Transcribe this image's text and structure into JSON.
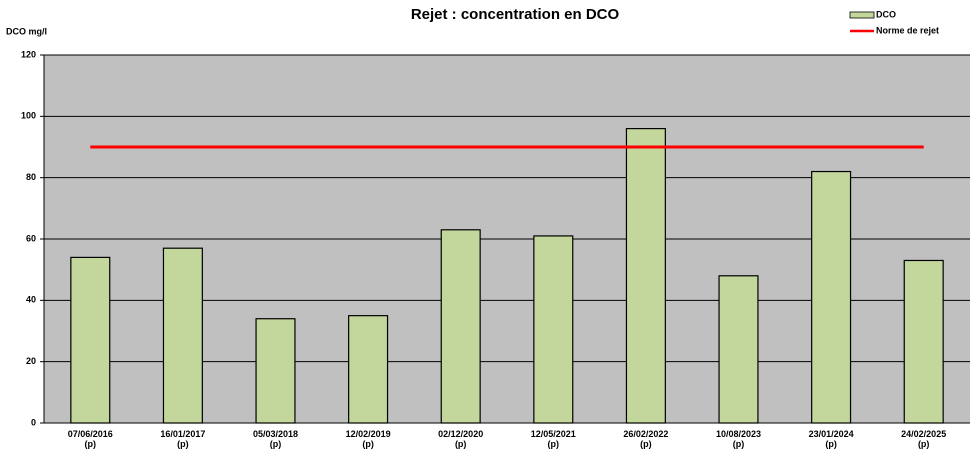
{
  "chart_data": {
    "type": "bar",
    "title": "Rejet : concentration en DCO",
    "y_label": "DCO mg/l",
    "categories": [
      "07/06/2016\n(p)",
      "16/01/2017\n(p)",
      "05/03/2018\n(p)",
      "12/02/2019\n(p)",
      "02/12/2020\n(p)",
      "12/05/2021\n(p)",
      "26/02/2022\n(p)",
      "10/08/2023\n(p)",
      "23/01/2024\n(p)",
      "24/02/2025\n(p)"
    ],
    "series": [
      {
        "name": "DCO",
        "type": "bar",
        "color": "#c3d69b",
        "values": [
          54,
          57,
          34,
          35,
          63,
          61,
          96,
          48,
          82,
          53
        ]
      },
      {
        "name": "Norme de rejet",
        "type": "line",
        "color": "#ff0000",
        "values": [
          90,
          90,
          90,
          90,
          90,
          90,
          90,
          90,
          90,
          90
        ]
      }
    ],
    "ylim": [
      0,
      120
    ],
    "yticks": [
      0,
      20,
      40,
      60,
      80,
      100,
      120
    ],
    "grid": true,
    "legend": "top-right"
  }
}
